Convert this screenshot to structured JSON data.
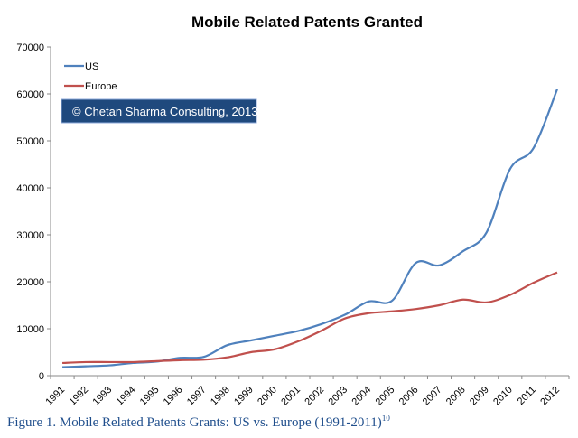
{
  "chart_data": {
    "type": "line",
    "title": "Mobile Related Patents Granted",
    "xlabel": "",
    "ylabel": "",
    "ylim": [
      0,
      70000
    ],
    "yticks": [
      0,
      10000,
      20000,
      30000,
      40000,
      50000,
      60000,
      70000
    ],
    "categories": [
      "1991",
      "1992",
      "1993",
      "1994",
      "1995",
      "1996",
      "1997",
      "1998",
      "1999",
      "2000",
      "2001",
      "2002",
      "2003",
      "2004",
      "2005",
      "2006",
      "2007",
      "2008",
      "2009",
      "2010",
      "2011",
      "2012"
    ],
    "series": [
      {
        "name": "US",
        "color": "#4f81bd",
        "values": [
          1800,
          2000,
          2200,
          2700,
          3000,
          3800,
          4000,
          6500,
          7500,
          8500,
          9500,
          11000,
          13000,
          15800,
          16000,
          24000,
          23500,
          26500,
          30500,
          44000,
          48500,
          61000
        ]
      },
      {
        "name": "Europe",
        "color": "#c0504d",
        "values": [
          2700,
          2900,
          2900,
          2900,
          3100,
          3300,
          3400,
          3900,
          5000,
          5600,
          7300,
          9600,
          12200,
          13300,
          13700,
          14200,
          15000,
          16200,
          15600,
          17200,
          19800,
          22000
        ]
      }
    ],
    "legend": "top-left",
    "grid": false,
    "annotation": "© Chetan Sharma Consulting, 2013"
  },
  "caption": {
    "text": "Figure 1. Mobile Related Patents Grants: US vs. Europe (1991-2011)",
    "footnote": "10"
  }
}
